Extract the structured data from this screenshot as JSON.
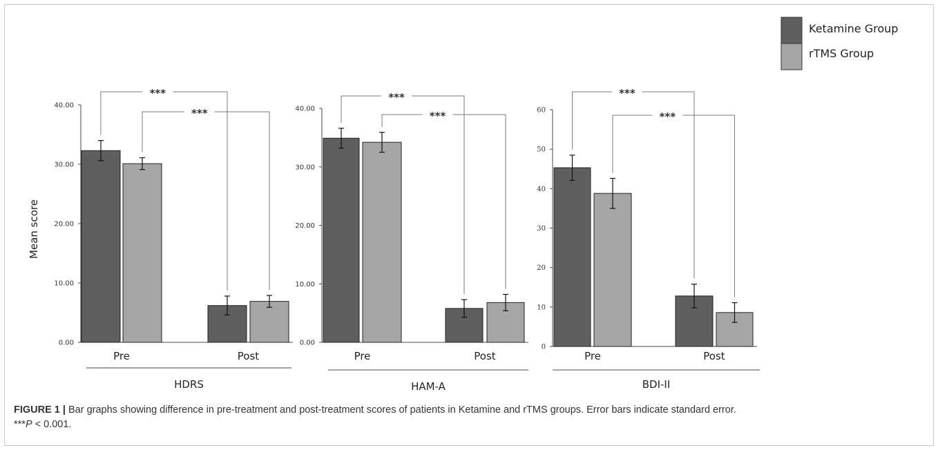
{
  "colors": {
    "ketamine": "#5f5f5f",
    "rtms": "#a6a6a6",
    "axis": "#444444",
    "bracket": "#7a7a7a"
  },
  "legend": [
    {
      "name": "Ketamine Group",
      "color": "#5f5f5f"
    },
    {
      "name": "rTMS Group",
      "color": "#a6a6a6"
    }
  ],
  "chart_data": [
    {
      "type": "bar",
      "xlabel": "HDRS",
      "ylabel": "Mean score",
      "categories": [
        "Pre",
        "Post"
      ],
      "ylim": [
        0,
        40
      ],
      "yticks": [
        "0.00",
        "10.00",
        "20.00",
        "30.00",
        "40.00"
      ],
      "series": [
        {
          "name": "Ketamine Group",
          "values": [
            32.3,
            6.2
          ],
          "errors": [
            1.7,
            1.6
          ]
        },
        {
          "name": "rTMS Group",
          "values": [
            30.1,
            6.9
          ],
          "errors": [
            1.0,
            1.0
          ]
        }
      ],
      "significance": [
        "***",
        "***"
      ]
    },
    {
      "type": "bar",
      "xlabel": "HAM-A",
      "ylabel": "",
      "categories": [
        "Pre",
        "Post"
      ],
      "ylim": [
        0,
        40
      ],
      "yticks": [
        "0.00",
        "10.00",
        "20.00",
        "30.00",
        "40.00"
      ],
      "series": [
        {
          "name": "Ketamine Group",
          "values": [
            34.9,
            5.8
          ],
          "errors": [
            1.7,
            1.5
          ]
        },
        {
          "name": "rTMS Group",
          "values": [
            34.2,
            6.8
          ],
          "errors": [
            1.7,
            1.4
          ]
        }
      ],
      "significance": [
        "***",
        "***"
      ]
    },
    {
      "type": "bar",
      "xlabel": "BDI-II",
      "ylabel": "",
      "categories": [
        "Pre",
        "Post"
      ],
      "ylim": [
        0,
        60
      ],
      "yticks": [
        "0",
        "10",
        "20",
        "30",
        "40",
        "50",
        "60"
      ],
      "series": [
        {
          "name": "Ketamine Group",
          "values": [
            45.3,
            12.8
          ],
          "errors": [
            3.2,
            3.0
          ]
        },
        {
          "name": "rTMS Group",
          "values": [
            38.8,
            8.6
          ],
          "errors": [
            3.8,
            2.5
          ]
        }
      ],
      "significance": [
        "***",
        "***"
      ]
    }
  ],
  "caption": {
    "label": "FIGURE 1 |",
    "text": " Bar graphs showing difference in pre-treatment and post-treatment scores of patients in Ketamine and rTMS groups. Error bars indicate standard error.",
    "note_prefix": "***",
    "note_var": "P",
    "note_rest": " < 0.001."
  }
}
